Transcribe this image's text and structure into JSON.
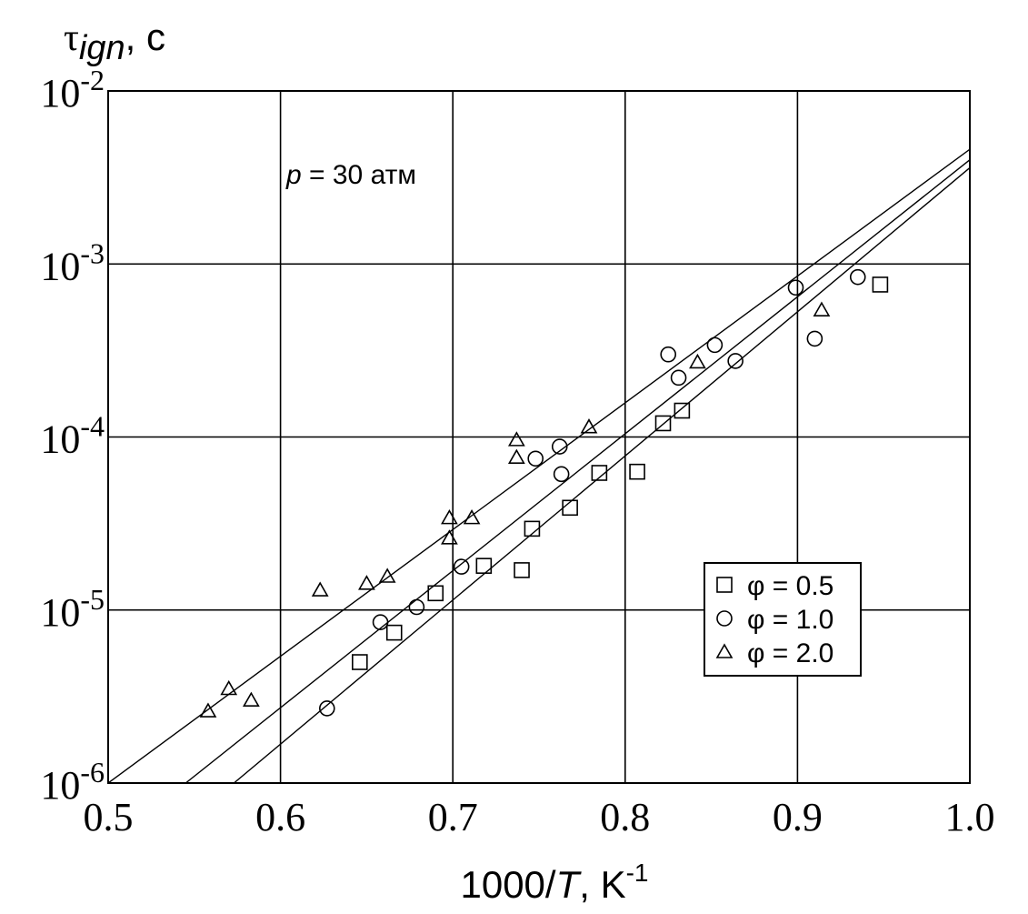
{
  "chart_data": {
    "type": "scatter",
    "title": "",
    "annotation": {
      "var": "p",
      "rest": " = 30 атм"
    },
    "xlabel": {
      "main": "1000/",
      "var": "T",
      "unit": ", K",
      "unit_sup": "-1"
    },
    "ylabel": {
      "main": "τ",
      "sub": "ign",
      "unit": ", с"
    },
    "xlim": [
      0.5,
      1.0
    ],
    "ylim": [
      1e-06,
      0.01
    ],
    "yscale": "log",
    "grid": true,
    "x_ticks": [
      {
        "v": 0.5,
        "label": "0.5"
      },
      {
        "v": 0.6,
        "label": "0.6"
      },
      {
        "v": 0.7,
        "label": "0.7"
      },
      {
        "v": 0.8,
        "label": "0.8"
      },
      {
        "v": 0.9,
        "label": "0.9"
      },
      {
        "v": 1.0,
        "label": "1.0"
      }
    ],
    "y_ticks": [
      {
        "v": 1e-06,
        "base": "10",
        "exp": "-6"
      },
      {
        "v": 1e-05,
        "base": "10",
        "exp": "-5"
      },
      {
        "v": 0.0001,
        "base": "10",
        "exp": "-4"
      },
      {
        "v": 0.001,
        "base": "10",
        "exp": "-3"
      },
      {
        "v": 0.01,
        "base": "10",
        "exp": "-2"
      }
    ],
    "legend_position": "lower-right",
    "series": [
      {
        "name": "φ = 0.5",
        "marker": "square",
        "points": [
          [
            0.646,
            5e-06
          ],
          [
            0.666,
            7.4e-06
          ],
          [
            0.69,
            1.25e-05
          ],
          [
            0.718,
            1.8e-05
          ],
          [
            0.74,
            1.7e-05
          ],
          [
            0.746,
            2.95e-05
          ],
          [
            0.768,
            3.9e-05
          ],
          [
            0.785,
            6.2e-05
          ],
          [
            0.807,
            6.3e-05
          ],
          [
            0.822,
            0.00012
          ],
          [
            0.833,
            0.000142
          ],
          [
            0.948,
            0.00076
          ]
        ],
        "fit": [
          [
            0.573,
            1e-06
          ],
          [
            1.0,
            0.0036
          ]
        ]
      },
      {
        "name": "φ = 1.0",
        "marker": "circle",
        "points": [
          [
            0.627,
            2.7e-06
          ],
          [
            0.658,
            8.5e-06
          ],
          [
            0.679,
            1.04e-05
          ],
          [
            0.705,
            1.78e-05
          ],
          [
            0.748,
            7.5e-05
          ],
          [
            0.762,
            8.8e-05
          ],
          [
            0.763,
            6.1e-05
          ],
          [
            0.825,
            0.0003
          ],
          [
            0.831,
            0.00022
          ],
          [
            0.852,
            0.00034
          ],
          [
            0.864,
            0.000275
          ],
          [
            0.899,
            0.00073
          ],
          [
            0.91,
            0.00037
          ],
          [
            0.935,
            0.00084
          ]
        ],
        "fit": [
          [
            0.545,
            1e-06
          ],
          [
            1.0,
            0.004
          ]
        ]
      },
      {
        "name": "φ = 2.0",
        "marker": "triangle",
        "points": [
          [
            0.558,
            2.6e-06
          ],
          [
            0.57,
            3.5e-06
          ],
          [
            0.583,
            3e-06
          ],
          [
            0.623,
            1.3e-05
          ],
          [
            0.65,
            1.42e-05
          ],
          [
            0.662,
            1.56e-05
          ],
          [
            0.698,
            3.4e-05
          ],
          [
            0.698,
            2.6e-05
          ],
          [
            0.711,
            3.4e-05
          ],
          [
            0.737,
            9.6e-05
          ],
          [
            0.737,
            7.6e-05
          ],
          [
            0.779,
            0.000114
          ],
          [
            0.842,
            0.00027
          ],
          [
            0.914,
            0.00054
          ]
        ],
        "fit": [
          [
            0.5,
            1e-06
          ],
          [
            1.0,
            0.0046
          ]
        ]
      }
    ]
  }
}
